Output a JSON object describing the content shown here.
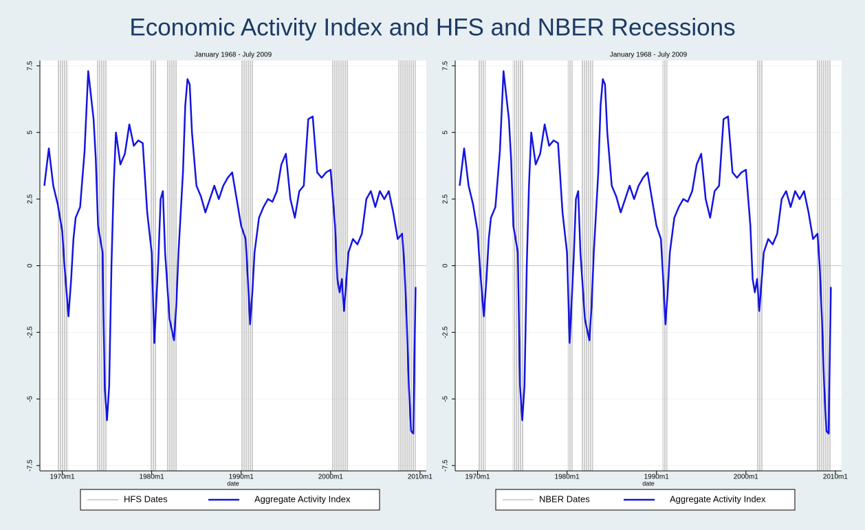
{
  "title": "Economic Activity Index and HFS and NBER Recessions",
  "chart_data": [
    {
      "type": "line",
      "subtitle": "January 1968 - July 2009",
      "x_label": "date",
      "xlim": [
        1967.5,
        2010.7
      ],
      "ylim": [
        -7.7,
        7.7
      ],
      "xticks": [
        {
          "value": 1970,
          "label": "1970m1"
        },
        {
          "value": 1980,
          "label": "1980m1"
        },
        {
          "value": 1990,
          "label": "1990m1"
        },
        {
          "value": 2000,
          "label": "2000m1"
        },
        {
          "value": 2010,
          "label": "2010m1"
        }
      ],
      "yticks": [
        -7.5,
        -5,
        -2.5,
        0,
        2.5,
        5,
        7.5
      ],
      "grid": true,
      "legend": "bottom",
      "x": [
        1968,
        1968.5,
        1969,
        1969.5,
        1970,
        1970.25,
        1970.7,
        1971,
        1971.25,
        1971.5,
        1972,
        1972.5,
        1972.9,
        1973.5,
        1973.75,
        1974,
        1974.5,
        1974.75,
        1975,
        1975.25,
        1975.5,
        1975.75,
        1976,
        1976.5,
        1977,
        1977.5,
        1978,
        1978.5,
        1979,
        1979.5,
        1980,
        1980.3,
        1980.75,
        1981,
        1981.25,
        1981.5,
        1982,
        1982.5,
        1982.75,
        1983,
        1983.5,
        1983.75,
        1984,
        1984.25,
        1984.5,
        1985,
        1985.5,
        1986,
        1986.5,
        1987,
        1987.5,
        1988,
        1988.5,
        1989,
        1989.5,
        1990,
        1990.5,
        1990.75,
        1991,
        1991.25,
        1991.5,
        1992,
        1992.5,
        1993,
        1993.5,
        1994,
        1994.5,
        1995,
        1995.5,
        1996,
        1996.5,
        1997,
        1997.5,
        1998,
        1998.5,
        1999,
        1999.5,
        2000,
        2000.5,
        2000.75,
        2001,
        2001.25,
        2001.5,
        2001.75,
        2002,
        2002.5,
        2003,
        2003.5,
        2004,
        2004.5,
        2005,
        2005.5,
        2006,
        2006.5,
        2007,
        2007.5,
        2008,
        2008.25,
        2008.5,
        2008.75,
        2009,
        2009.25,
        2009.5
      ],
      "series": [
        {
          "name": "HFS Dates",
          "color": "#a0a0a0",
          "periods": [
            [
              1969.5,
              1970.7
            ],
            [
              1973.8,
              1975.0
            ],
            [
              1979.8,
              1980.5
            ],
            [
              1981.6,
              1982.8
            ],
            [
              1990.0,
              1991.3
            ],
            [
              2000.2,
              2001.9
            ],
            [
              2007.6,
              2009.5
            ]
          ]
        },
        {
          "name": "Aggregate Activity Index",
          "color": "#1414e0",
          "values": [
            3.0,
            4.4,
            3.0,
            2.3,
            1.3,
            0.0,
            -1.9,
            -0.5,
            1.0,
            1.8,
            2.2,
            4.3,
            7.3,
            5.5,
            4.0,
            1.5,
            0.5,
            -4.5,
            -5.8,
            -4.5,
            0.0,
            3.0,
            5.0,
            3.8,
            4.2,
            5.3,
            4.5,
            4.7,
            4.6,
            2.0,
            0.5,
            -2.9,
            0.3,
            2.5,
            2.8,
            0.5,
            -2.0,
            -2.8,
            -1.5,
            0.5,
            3.5,
            6.0,
            7.0,
            6.8,
            5.0,
            3.0,
            2.6,
            2.0,
            2.5,
            3.0,
            2.5,
            3.0,
            3.3,
            3.5,
            2.5,
            1.5,
            1.0,
            -0.5,
            -2.2,
            -1.0,
            0.5,
            1.8,
            2.2,
            2.5,
            2.4,
            2.8,
            3.8,
            4.2,
            2.5,
            1.8,
            2.8,
            3.0,
            5.5,
            5.6,
            3.5,
            3.3,
            3.5,
            3.6,
            1.5,
            -0.5,
            -1.0,
            -0.5,
            -1.7,
            -0.6,
            0.5,
            1.0,
            0.8,
            1.2,
            2.5,
            2.8,
            2.2,
            2.8,
            2.5,
            2.8,
            2.0,
            1.0,
            1.2,
            0.0,
            -2.0,
            -4.5,
            -6.2,
            -6.3,
            -0.8
          ]
        }
      ]
    },
    {
      "type": "line",
      "subtitle": "January 1968 - July 2009",
      "x_label": "date",
      "xlim": [
        1967.5,
        2010.7
      ],
      "ylim": [
        -7.7,
        7.7
      ],
      "xticks": [
        {
          "value": 1970,
          "label": "1970m1"
        },
        {
          "value": 1980,
          "label": "1980m1"
        },
        {
          "value": 1990,
          "label": "1990m1"
        },
        {
          "value": 2000,
          "label": "2000m1"
        },
        {
          "value": 2010,
          "label": "2010m1"
        }
      ],
      "yticks": [
        -7.5,
        -5,
        -2.5,
        0,
        2.5,
        5,
        7.5
      ],
      "grid": true,
      "legend": "bottom",
      "x": [
        1968,
        1968.5,
        1969,
        1969.5,
        1970,
        1970.25,
        1970.7,
        1971,
        1971.25,
        1971.5,
        1972,
        1972.5,
        1972.9,
        1973.5,
        1973.75,
        1974,
        1974.5,
        1974.75,
        1975,
        1975.25,
        1975.5,
        1975.75,
        1976,
        1976.5,
        1977,
        1977.5,
        1978,
        1978.5,
        1979,
        1979.5,
        1980,
        1980.3,
        1980.75,
        1981,
        1981.25,
        1981.5,
        1982,
        1982.5,
        1982.75,
        1983,
        1983.5,
        1983.75,
        1984,
        1984.25,
        1984.5,
        1985,
        1985.5,
        1986,
        1986.5,
        1987,
        1987.5,
        1988,
        1988.5,
        1989,
        1989.5,
        1990,
        1990.5,
        1990.75,
        1991,
        1991.25,
        1991.5,
        1992,
        1992.5,
        1993,
        1993.5,
        1994,
        1994.5,
        1995,
        1995.5,
        1996,
        1996.5,
        1997,
        1997.5,
        1998,
        1998.5,
        1999,
        1999.5,
        2000,
        2000.5,
        2000.75,
        2001,
        2001.25,
        2001.5,
        2001.75,
        2002,
        2002.5,
        2003,
        2003.5,
        2004,
        2004.5,
        2005,
        2005.5,
        2006,
        2006.5,
        2007,
        2007.5,
        2008,
        2008.25,
        2008.5,
        2008.75,
        2009,
        2009.25,
        2009.5
      ],
      "series": [
        {
          "name": "NBER Dates",
          "color": "#a0a0a0",
          "periods": [
            [
              1970.0,
              1970.9
            ],
            [
              1973.9,
              1975.2
            ],
            [
              1980.1,
              1980.6
            ],
            [
              1981.6,
              1982.9
            ],
            [
              1990.7,
              1991.2
            ],
            [
              2001.2,
              2001.9
            ],
            [
              2007.9,
              2009.5
            ]
          ]
        },
        {
          "name": "Aggregate Activity Index",
          "color": "#1414e0",
          "values": [
            3.0,
            4.4,
            3.0,
            2.3,
            1.3,
            0.0,
            -1.9,
            -0.5,
            1.0,
            1.8,
            2.2,
            4.3,
            7.3,
            5.5,
            4.0,
            1.5,
            0.5,
            -4.5,
            -5.8,
            -4.5,
            0.0,
            3.0,
            5.0,
            3.8,
            4.2,
            5.3,
            4.5,
            4.7,
            4.6,
            2.0,
            0.5,
            -2.9,
            0.3,
            2.5,
            2.8,
            0.5,
            -2.0,
            -2.8,
            -1.5,
            0.5,
            3.5,
            6.0,
            7.0,
            6.8,
            5.0,
            3.0,
            2.6,
            2.0,
            2.5,
            3.0,
            2.5,
            3.0,
            3.3,
            3.5,
            2.5,
            1.5,
            1.0,
            -0.5,
            -2.2,
            -1.0,
            0.5,
            1.8,
            2.2,
            2.5,
            2.4,
            2.8,
            3.8,
            4.2,
            2.5,
            1.8,
            2.8,
            3.0,
            5.5,
            5.6,
            3.5,
            3.3,
            3.5,
            3.6,
            1.5,
            -0.5,
            -1.0,
            -0.5,
            -1.7,
            -0.6,
            0.5,
            1.0,
            0.8,
            1.2,
            2.5,
            2.8,
            2.2,
            2.8,
            2.5,
            2.8,
            2.0,
            1.0,
            1.2,
            0.0,
            -2.0,
            -4.5,
            -6.2,
            -6.3,
            -0.8
          ]
        }
      ]
    }
  ]
}
